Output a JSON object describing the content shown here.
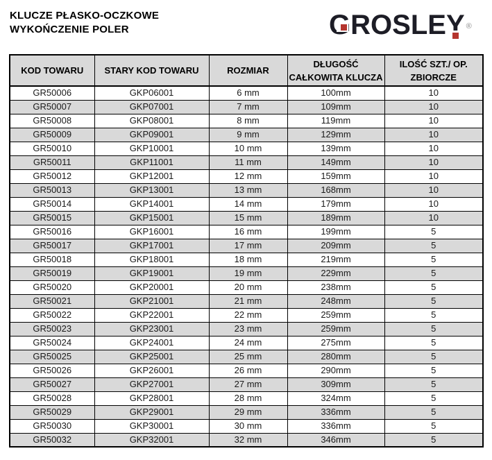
{
  "page": {
    "title_line1": "KLUCZE PŁASKO-OCZKOWE",
    "title_line2": "WYKOŃCZENIE POLER"
  },
  "logo": {
    "brand_letters": [
      "G",
      "R",
      "O",
      "S",
      "L",
      "E",
      "Y"
    ],
    "brand_name": "GROSLEY",
    "registered_mark": "®",
    "dark_color": "#1d1d26",
    "accent_red": "#b5352e"
  },
  "table": {
    "header_bg": "#d9d9d9",
    "alt_row_bg": "#d9d9d9",
    "border_color": "#000000",
    "headers": [
      "KOD TOWARU",
      "STARY KOD TOWARU",
      "ROZMIAR",
      "DŁUGOŚĆ\nCAŁKOWITA KLUCZA",
      "ILOŚĆ SZT./ OP.\nZBIORCZE"
    ],
    "rows": [
      [
        "GR50006",
        "GKP06001",
        "6 mm",
        "100mm",
        "10"
      ],
      [
        "GR50007",
        "GKP07001",
        "7 mm",
        "109mm",
        "10"
      ],
      [
        "GR50008",
        "GKP08001",
        "8 mm",
        "119mm",
        "10"
      ],
      [
        "GR50009",
        "GKP09001",
        "9 mm",
        "129mm",
        "10"
      ],
      [
        "GR50010",
        "GKP10001",
        "10 mm",
        "139mm",
        "10"
      ],
      [
        "GR50011",
        "GKP11001",
        "11 mm",
        "149mm",
        "10"
      ],
      [
        "GR50012",
        "GKP12001",
        "12 mm",
        "159mm",
        "10"
      ],
      [
        "GR50013",
        "GKP13001",
        "13 mm",
        "168mm",
        "10"
      ],
      [
        "GR50014",
        "GKP14001",
        "14 mm",
        "179mm",
        "10"
      ],
      [
        "GR50015",
        "GKP15001",
        "15 mm",
        "189mm",
        "10"
      ],
      [
        "GR50016",
        "GKP16001",
        "16 mm",
        "199mm",
        "5"
      ],
      [
        "GR50017",
        "GKP17001",
        "17 mm",
        "209mm",
        "5"
      ],
      [
        "GR50018",
        "GKP18001",
        "18 mm",
        "219mm",
        "5"
      ],
      [
        "GR50019",
        "GKP19001",
        "19 mm",
        "229mm",
        "5"
      ],
      [
        "GR50020",
        "GKP20001",
        "20 mm",
        "238mm",
        "5"
      ],
      [
        "GR50021",
        "GKP21001",
        "21 mm",
        "248mm",
        "5"
      ],
      [
        "GR50022",
        "GKP22001",
        "22 mm",
        "259mm",
        "5"
      ],
      [
        "GR50023",
        "GKP23001",
        "23 mm",
        "259mm",
        "5"
      ],
      [
        "GR50024",
        "GKP24001",
        "24 mm",
        "275mm",
        "5"
      ],
      [
        "GR50025",
        "GKP25001",
        "25 mm",
        "280mm",
        "5"
      ],
      [
        "GR50026",
        "GKP26001",
        "26 mm",
        "290mm",
        "5"
      ],
      [
        "GR50027",
        "GKP27001",
        "27 mm",
        "309mm",
        "5"
      ],
      [
        "GR50028",
        "GKP28001",
        "28 mm",
        "324mm",
        "5"
      ],
      [
        "GR50029",
        "GKP29001",
        "29 mm",
        "336mm",
        "5"
      ],
      [
        "GR50030",
        "GKP30001",
        "30 mm",
        "336mm",
        "5"
      ],
      [
        "GR50032",
        "GKP32001",
        "32 mm",
        "346mm",
        "5"
      ]
    ]
  }
}
